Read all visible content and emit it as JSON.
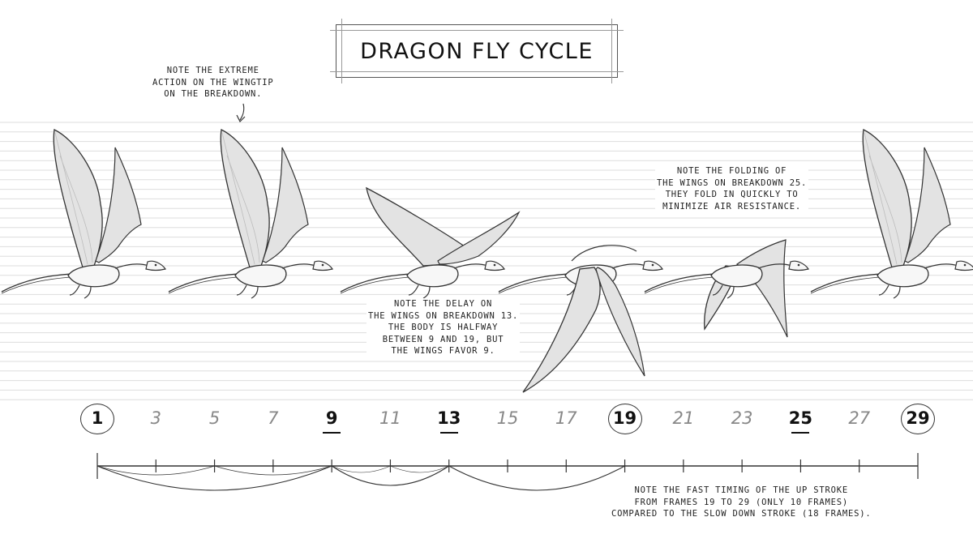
{
  "title": "DRAGON FLY CYCLE",
  "notes": {
    "extreme_action": [
      "NOTE THE EXTREME",
      "ACTION ON THE WINGTIP",
      "ON THE BREAKDOWN."
    ],
    "delay": [
      "NOTE THE DELAY ON",
      "THE WINGS ON BREAKDOWN 13.",
      "THE BODY IS HALFWAY",
      "BETWEEN 9 AND 19, BUT",
      "THE WINGS FAVOR 9."
    ],
    "folding": [
      "NOTE THE FOLDING OF",
      "THE WINGS ON BREAKDOWN 25.",
      "THEY FOLD IN QUICKLY TO",
      "MINIMIZE AIR RESISTANCE."
    ],
    "timing": [
      "NOTE THE FAST TIMING OF THE UP STROKE",
      "FROM FRAMES 19 TO 29 (ONLY 10 FRAMES)",
      "COMPARED TO THE SLOW DOWN STROKE (18 FRAMES)."
    ]
  },
  "frames": [
    {
      "label": "1",
      "style": "circled"
    },
    {
      "label": "3",
      "style": "inbetween"
    },
    {
      "label": "5",
      "style": "inbetween"
    },
    {
      "label": "7",
      "style": "inbetween"
    },
    {
      "label": "9",
      "style": "underlined"
    },
    {
      "label": "11",
      "style": "inbetween"
    },
    {
      "label": "13",
      "style": "underlined"
    },
    {
      "label": "15",
      "style": "inbetween"
    },
    {
      "label": "17",
      "style": "inbetween"
    },
    {
      "label": "19",
      "style": "circled"
    },
    {
      "label": "21",
      "style": "inbetween"
    },
    {
      "label": "23",
      "style": "inbetween"
    },
    {
      "label": "25",
      "style": "underlined"
    },
    {
      "label": "27",
      "style": "inbetween"
    },
    {
      "label": "29",
      "style": "circled"
    }
  ],
  "dragon_poses": [
    {
      "frame": "1",
      "wing": "up"
    },
    {
      "frame": "9",
      "wing": "up"
    },
    {
      "frame": "13",
      "wing": "level"
    },
    {
      "frame": "19",
      "wing": "down"
    },
    {
      "frame": "25",
      "wing": "folded"
    },
    {
      "frame": "29",
      "wing": "up"
    }
  ],
  "colors": {
    "line": "#333333",
    "wing": "#e3e3e3",
    "wing_dark": "#bdbdbd",
    "guide": "#dddddd"
  }
}
